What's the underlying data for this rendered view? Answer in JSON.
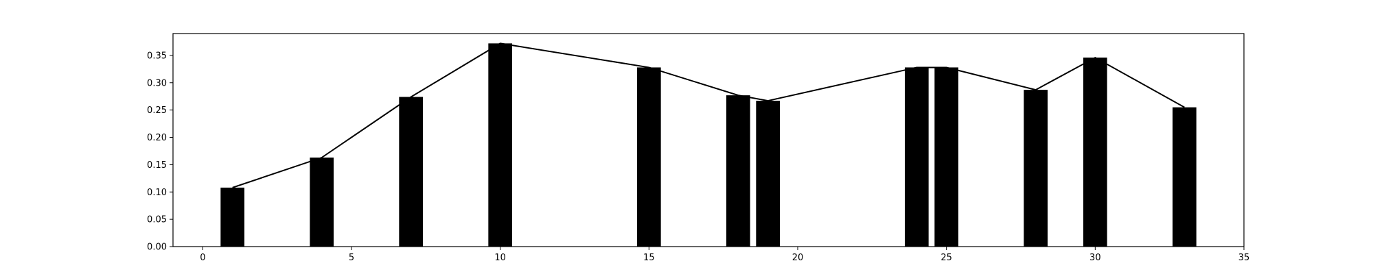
{
  "chart_data": {
    "type": "bar",
    "x": [
      1,
      4,
      7,
      10,
      15,
      18,
      19,
      24,
      25,
      28,
      30,
      33
    ],
    "values": [
      0.108,
      0.163,
      0.274,
      0.372,
      0.328,
      0.277,
      0.267,
      0.328,
      0.328,
      0.287,
      0.346,
      0.255
    ],
    "overlay_line": {
      "x": [
        1,
        4,
        7,
        10,
        15,
        18,
        19,
        24,
        25,
        28,
        30,
        33
      ],
      "values": [
        0.108,
        0.163,
        0.274,
        0.372,
        0.328,
        0.277,
        0.267,
        0.328,
        0.328,
        0.287,
        0.346,
        0.255
      ]
    },
    "xlim": [
      -1,
      35
    ],
    "ylim": [
      0,
      0.39
    ],
    "x_ticks": [
      0,
      5,
      10,
      15,
      20,
      25,
      30,
      35
    ],
    "x_tick_labels": [
      "0",
      "5",
      "10",
      "15",
      "20",
      "25",
      "30",
      "35"
    ],
    "y_ticks": [
      0.0,
      0.05,
      0.1,
      0.15,
      0.2,
      0.25,
      0.3,
      0.35
    ],
    "y_tick_labels": [
      "0.00",
      "0.05",
      "0.10",
      "0.15",
      "0.20",
      "0.25",
      "0.30",
      "0.35"
    ],
    "bar_width": 0.8,
    "title": "",
    "xlabel": "",
    "ylabel": "",
    "grid": false,
    "colors": {
      "bars": "#000000",
      "line": "#000000",
      "background": "#ffffff"
    }
  }
}
